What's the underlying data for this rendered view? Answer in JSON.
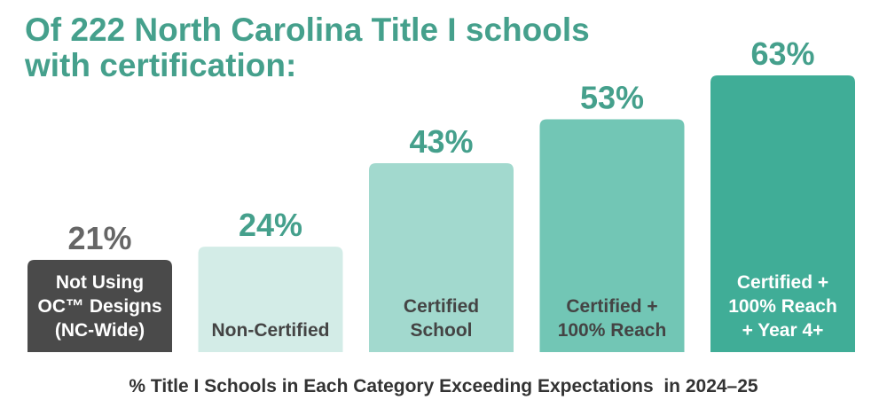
{
  "title_lines": [
    "Of 222 North Carolina Title I schools",
    "with certification:"
  ],
  "caption": "% Title I Schools in Each Category Exceeding Expectations  in 2024–25",
  "colors": {
    "title": "#45a08c",
    "caption": "#333333",
    "bars": [
      "#4a4a4a",
      "#d3ece7",
      "#a2d9ce",
      "#72c6b5",
      "#40ad97"
    ],
    "value_labels": [
      "#666666",
      "#45a08c",
      "#45a08c",
      "#45a08c",
      "#45a08c"
    ],
    "bar_labels": [
      "#ffffff",
      "#444444",
      "#444444",
      "#444444",
      "#ffffff"
    ]
  },
  "chart_data": {
    "type": "bar",
    "title": "Of 222 North Carolina Title I schools with certification:",
    "xlabel": "% Title I Schools in Each Category Exceeding Expectations  in 2024–25",
    "ylabel": "",
    "ylim": [
      0,
      63
    ],
    "grid": false,
    "categories": [
      [
        "Not Using",
        "OC™ Designs",
        "(NC-Wide)"
      ],
      [
        "Non-Certified"
      ],
      [
        "Certified",
        "School"
      ],
      [
        "Certified +",
        "100% Reach"
      ],
      [
        "Certified +",
        "100% Reach",
        "+ Year 4+"
      ]
    ],
    "values": [
      21,
      24,
      43,
      53,
      63
    ],
    "value_labels": [
      "21%",
      "24%",
      "43%",
      "53%",
      "63%"
    ]
  }
}
